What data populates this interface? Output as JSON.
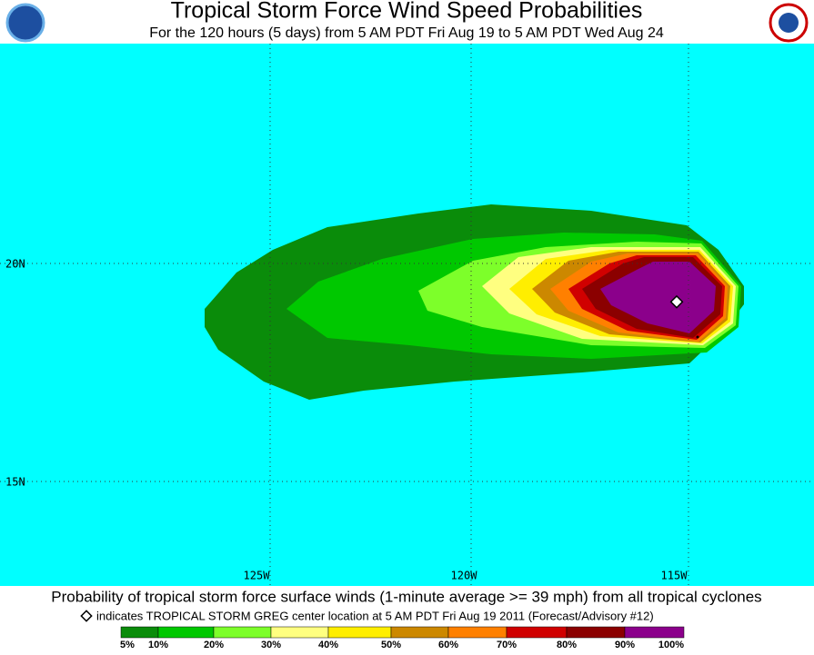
{
  "header": {
    "title": "Tropical Storm Force Wind Speed Probabilities",
    "subtitle": "For the 120 hours (5 days) from 5 AM PDT Fri Aug 19 to 5 AM PDT Wed Aug 24"
  },
  "map": {
    "lat_labels": [
      "20N",
      "15N"
    ],
    "lon_labels": [
      "125W",
      "120W",
      "115W"
    ]
  },
  "footer": {
    "caption": "Probability of tropical storm force surface winds (1-minute average >= 39 mph) from all tropical cyclones",
    "note": "indicates TROPICAL STORM GREG center location at 5 AM PDT Fri Aug 19 2011 (Forecast/Advisory #12)"
  },
  "legend": {
    "labels": [
      "5%",
      "10%",
      "20%",
      "30%",
      "40%",
      "50%",
      "60%",
      "70%",
      "80%",
      "90%",
      "100%"
    ],
    "colors": [
      "#0a8c0a",
      "#00c800",
      "#7dff2a",
      "#ffff80",
      "#ffee00",
      "#cc8800",
      "#ff8000",
      "#d00000",
      "#8b0000",
      "#8b008b"
    ]
  }
}
